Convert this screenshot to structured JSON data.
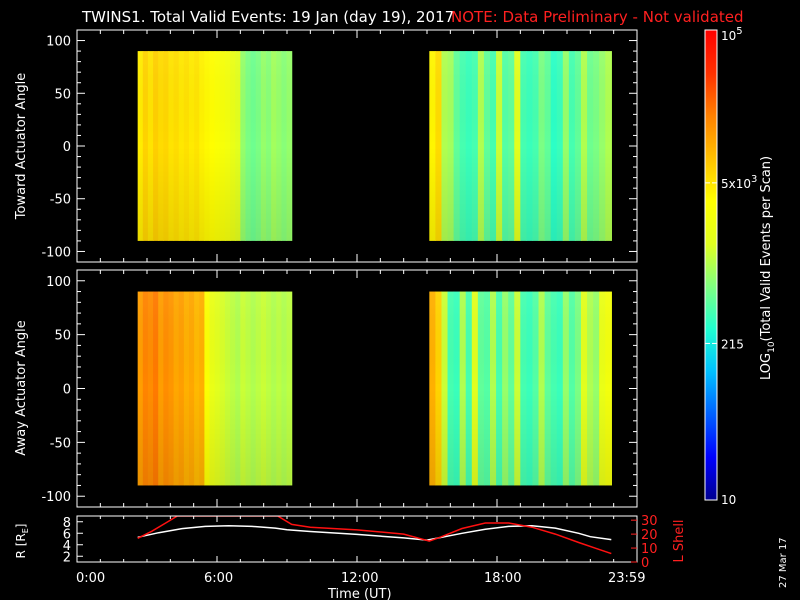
{
  "title": {
    "main": "TWINS1. Total Valid Events: 19 Jan (day  19), 2017",
    "note": "NOTE: Data Preliminary - Not validated"
  },
  "colorbar": {
    "label_prefix": "LOG",
    "label_sub": "10",
    "label_rest": "(Total Valid Events per Scan)",
    "ticks": [
      {
        "value": 100000,
        "base": "10",
        "exp": "5"
      },
      {
        "value": 5000,
        "base": "5x10",
        "exp": "3"
      },
      {
        "value": 215,
        "base": "215",
        "exp": ""
      },
      {
        "value": 10,
        "base": "10",
        "exp": ""
      }
    ],
    "range": [
      10,
      100000
    ],
    "scale": "log",
    "colors": [
      "#00008f",
      "#0000ff",
      "#0060ff",
      "#00c0ff",
      "#20ffd0",
      "#80ff80",
      "#e0ff20",
      "#ffff00",
      "#ffc000",
      "#ff8000",
      "#ff3000",
      "#ff0000"
    ]
  },
  "date_stamp": "27 Mar 17",
  "x_axis": {
    "label": "Time (UT)",
    "ticks": [
      "0:00",
      "6:00",
      "12:00",
      "18:00",
      "23:59"
    ],
    "range_hours": [
      0,
      24
    ]
  },
  "chart_data": [
    {
      "type": "heatmap",
      "title": "",
      "ylabel": "Toward Actuator Angle",
      "yticks": [
        "100",
        "50",
        "0",
        "-50",
        "-100"
      ],
      "ylim": [
        -110,
        110
      ],
      "data_y_range": [
        -90,
        90
      ],
      "data_blocks": [
        {
          "start_hour": 2.6,
          "end_hour": 9.2,
          "log10_counts_by_time": [
            3.65,
            3.8,
            3.7,
            3.82,
            3.75,
            3.78,
            3.7,
            3.74,
            3.68,
            3.72,
            3.66,
            3.7,
            3.62,
            3.58,
            3.55,
            3.5,
            3.45,
            3.4,
            3.3,
            3.2,
            2.9,
            2.8,
            2.75,
            2.8,
            2.9,
            2.85,
            2.95,
            2.9,
            2.85,
            2.9
          ]
        },
        {
          "start_hour": 15.1,
          "end_hour": 22.9,
          "log10_counts_by_time": [
            3.6,
            3.75,
            3.0,
            2.95,
            2.7,
            2.6,
            2.55,
            2.6,
            3.0,
            2.7,
            2.6,
            3.1,
            2.65,
            2.7,
            3.2,
            2.6,
            2.55,
            2.6,
            2.8,
            2.7,
            2.5,
            2.55,
            2.9,
            2.6,
            2.7,
            3.0,
            2.75,
            2.8,
            2.9,
            3.0
          ]
        }
      ]
    },
    {
      "type": "heatmap",
      "title": "",
      "ylabel": "Away Actuator Angle",
      "yticks": [
        "100",
        "50",
        "0",
        "-50",
        "-100"
      ],
      "ylim": [
        -110,
        110
      ],
      "data_y_range": [
        -90,
        90
      ],
      "data_blocks": [
        {
          "start_hour": 2.6,
          "end_hour": 9.2,
          "log10_counts_by_time": [
            4.1,
            4.25,
            4.2,
            4.3,
            4.1,
            4.2,
            4.15,
            4.05,
            4.1,
            4.0,
            4.05,
            3.95,
            4.0,
            3.5,
            3.3,
            3.2,
            3.15,
            3.1,
            3.05,
            3.0,
            3.1,
            3.05,
            3.0,
            3.05,
            3.1,
            3.05,
            3.0,
            3.05,
            3.0,
            3.05
          ]
        },
        {
          "start_hour": 15.1,
          "end_hour": 22.9,
          "log10_counts_by_time": [
            4.0,
            3.8,
            3.1,
            2.6,
            2.55,
            3.0,
            2.6,
            3.2,
            2.7,
            2.65,
            3.0,
            2.6,
            2.9,
            2.7,
            3.1,
            2.6,
            2.55,
            2.65,
            3.0,
            2.7,
            2.6,
            2.55,
            2.9,
            2.65,
            2.8,
            3.2,
            3.0,
            2.9,
            3.3,
            3.4
          ]
        }
      ]
    },
    {
      "type": "line",
      "title": "",
      "ylabel_left": "R [R",
      "ylabel_left_sub": "E",
      "ylabel_left_end": "]",
      "ylabel_right": "L Shell",
      "yticks_left": [
        "8",
        "6",
        "4",
        "2"
      ],
      "yticks_right": [
        "30",
        "20",
        "10",
        "0"
      ],
      "ylim_left": [
        1,
        9
      ],
      "ylim_right": [
        0,
        33
      ],
      "series": [
        {
          "name": "R [RE]",
          "axis": "left",
          "color": "#ffffff",
          "x_hours": [
            2.6,
            3.5,
            4.5,
            5.5,
            6.5,
            7.5,
            8.5,
            9.0,
            10.0,
            12.0,
            14.0,
            15.0,
            15.5,
            16.5,
            17.5,
            18.5,
            19.5,
            20.5,
            21.5,
            22.0,
            22.9
          ],
          "y": [
            5.3,
            6.1,
            6.8,
            7.2,
            7.3,
            7.2,
            6.9,
            6.6,
            6.3,
            5.8,
            5.2,
            4.8,
            5.2,
            6.0,
            6.7,
            7.2,
            7.3,
            6.9,
            6.0,
            5.4,
            4.9
          ]
        },
        {
          "name": "L Shell",
          "axis": "right",
          "color": "#ff1010",
          "x_hours": [
            2.6,
            3.2,
            3.8,
            4.3,
            4.6,
            8.6,
            9.2,
            10.0,
            12.0,
            14.0,
            15.1,
            15.6,
            16.5,
            17.5,
            18.5,
            19.5,
            20.5,
            21.5,
            22.2,
            22.9
          ],
          "y": [
            17,
            22,
            28,
            33,
            33,
            33,
            27,
            25,
            23,
            20,
            15,
            18,
            24,
            28,
            28,
            25,
            20,
            14,
            10,
            6
          ]
        }
      ]
    }
  ]
}
